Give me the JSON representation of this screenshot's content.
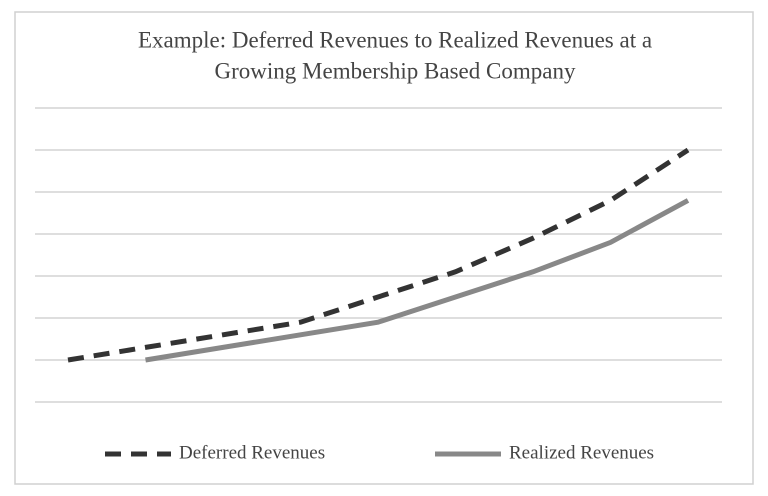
{
  "chart_data": {
    "type": "line",
    "title": [
      "Example: Deferred Revenues to Realized Revenues at a",
      "Growing Membership Based Company"
    ],
    "categories": [
      null,
      null,
      null,
      null,
      null,
      null,
      null,
      null,
      null
    ],
    "series": [
      {
        "name": "Deferred Revenues",
        "color": "#333333",
        "line_style": "dashed",
        "values": [
          1.0,
          1.3,
          1.6,
          1.9,
          2.5,
          3.1,
          3.9,
          4.8,
          6.0
        ]
      },
      {
        "name": "Realized Revenues",
        "color": "#888888",
        "line_style": "solid",
        "values": [
          null,
          1.0,
          1.3,
          1.6,
          1.9,
          2.5,
          3.1,
          3.8,
          4.8
        ]
      }
    ],
    "ylim": [
      0,
      7
    ],
    "yticks": [
      0,
      1,
      2,
      3,
      4,
      5,
      6,
      7
    ],
    "grid": true,
    "legend": "bottom"
  }
}
